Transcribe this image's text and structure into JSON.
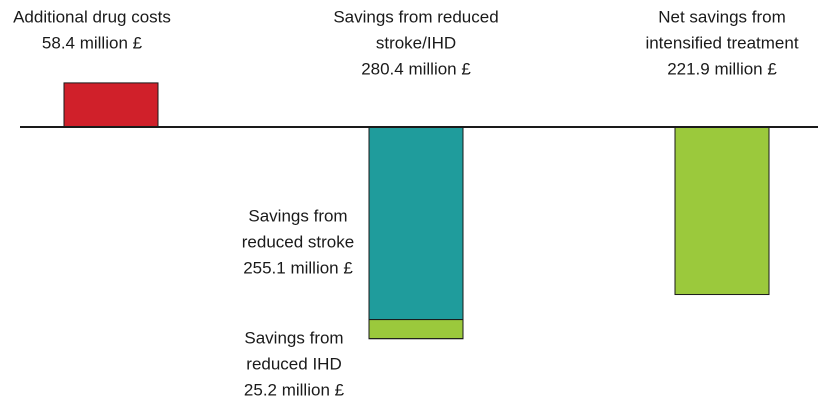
{
  "chart_data": {
    "type": "waterfall",
    "bars": [
      {
        "label": [
          "Additional drug costs"
        ],
        "value": 58.4,
        "value_label": "58.4 million £",
        "color": "#d0202a",
        "direction": "up"
      },
      {
        "label": [
          "Savings from reduced",
          "stroke/IHD"
        ],
        "value": 280.4,
        "value_label": "280.4 million £",
        "direction": "down",
        "segments": [
          {
            "label": [
              "Savings from",
              "reduced stroke"
            ],
            "value": 255.1,
            "value_label": "255.1 million £",
            "color": "#1f9c9c"
          },
          {
            "label": [
              "Savings from",
              "reduced IHD"
            ],
            "value": 25.2,
            "value_label": "25.2 million £",
            "color": "#9bc93c"
          }
        ]
      },
      {
        "label": [
          "Net savings from",
          "intensified treatment"
        ],
        "value": 221.9,
        "value_label": "221.9 million £",
        "color": "#9bc93c",
        "direction": "down"
      }
    ]
  }
}
